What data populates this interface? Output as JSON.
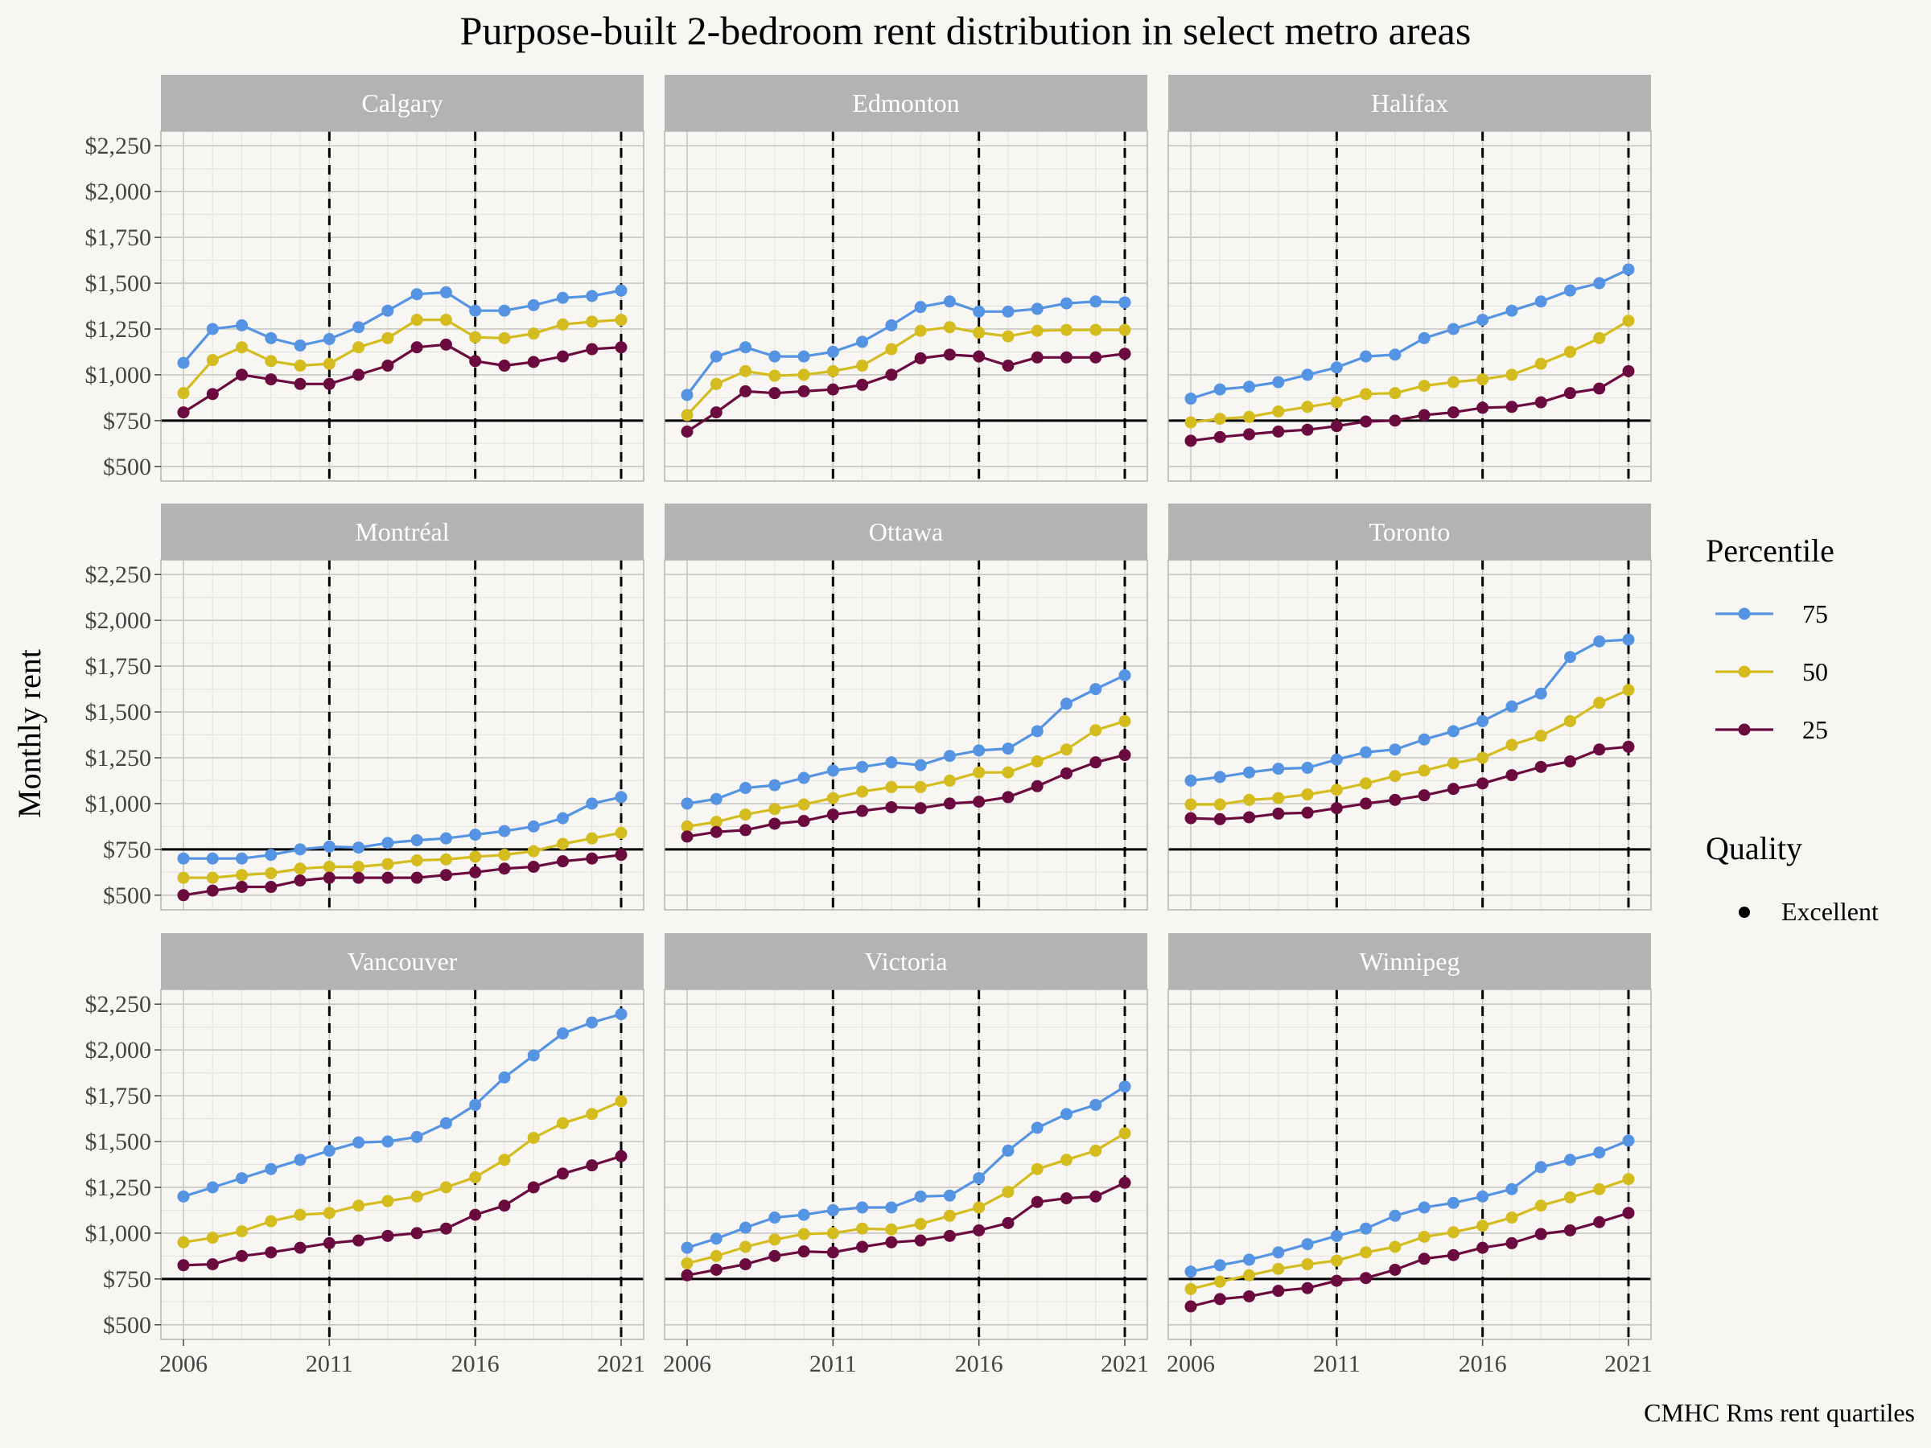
{
  "chart_data": {
    "type": "line",
    "title": "Purpose-built 2-bedroom rent distribution in select metro areas",
    "ylabel": "Monthly rent",
    "caption": "CMHC Rms rent quartiles",
    "x": [
      2006,
      2007,
      2008,
      2009,
      2010,
      2011,
      2012,
      2013,
      2014,
      2015,
      2016,
      2017,
      2018,
      2019,
      2020,
      2021
    ],
    "x_ticks": [
      2006,
      2011,
      2016,
      2021
    ],
    "x_tick_labels": [
      "2006",
      "2011",
      "2016",
      "2021"
    ],
    "ylim": [
      420,
      2330
    ],
    "y_ticks": [
      500,
      750,
      1000,
      1250,
      1500,
      1750,
      2000,
      2250
    ],
    "y_tick_labels": [
      "$500",
      "$750",
      "$1,000",
      "$1,250",
      "$1,500",
      "$1,750",
      "$2,000",
      "$2,250"
    ],
    "reference_hline": 750,
    "reference_vlines": [
      2011,
      2016,
      2021
    ],
    "grid": true,
    "legend": {
      "position": "right",
      "percentile_title": "Percentile",
      "quality_title": "Quality",
      "quality_items": [
        {
          "label": "Excellent",
          "color": "#000000"
        }
      ]
    },
    "series_meta": [
      {
        "name": "75",
        "color": "#5593e3"
      },
      {
        "name": "50",
        "color": "#d4bc1e"
      },
      {
        "name": "25",
        "color": "#6b0a3f"
      }
    ],
    "panels": [
      {
        "name": "Calgary",
        "series": [
          {
            "name": "75",
            "values": [
              1065,
              1250,
              1270,
              1200,
              1160,
              1195,
              1260,
              1350,
              1440,
              1450,
              1350,
              1350,
              1380,
              1420,
              1430,
              1460
            ]
          },
          {
            "name": "50",
            "values": [
              900,
              1080,
              1150,
              1075,
              1050,
              1060,
              1150,
              1200,
              1300,
              1300,
              1205,
              1200,
              1225,
              1275,
              1290,
              1300
            ]
          },
          {
            "name": "25",
            "values": [
              795,
              895,
              1000,
              975,
              950,
              950,
              1000,
              1050,
              1150,
              1165,
              1075,
              1050,
              1070,
              1100,
              1140,
              1150
            ]
          }
        ]
      },
      {
        "name": "Edmonton",
        "series": [
          {
            "name": "75",
            "values": [
              890,
              1100,
              1150,
              1100,
              1100,
              1125,
              1180,
              1270,
              1370,
              1400,
              1345,
              1345,
              1360,
              1390,
              1400,
              1395
            ]
          },
          {
            "name": "50",
            "values": [
              780,
              950,
              1020,
              995,
              1000,
              1020,
              1050,
              1140,
              1240,
              1260,
              1230,
              1210,
              1240,
              1245,
              1245,
              1245
            ]
          },
          {
            "name": "25",
            "values": [
              690,
              795,
              910,
              900,
              910,
              920,
              945,
              1000,
              1090,
              1110,
              1100,
              1050,
              1095,
              1095,
              1095,
              1115
            ]
          }
        ]
      },
      {
        "name": "Halifax",
        "series": [
          {
            "name": "75",
            "values": [
              870,
              920,
              935,
              960,
              1000,
              1040,
              1100,
              1110,
              1200,
              1250,
              1300,
              1350,
              1400,
              1460,
              1500,
              1575
            ]
          },
          {
            "name": "50",
            "values": [
              740,
              760,
              770,
              800,
              825,
              850,
              895,
              900,
              940,
              960,
              975,
              1000,
              1060,
              1125,
              1200,
              1295
            ]
          },
          {
            "name": "25",
            "values": [
              640,
              660,
              675,
              690,
              700,
              720,
              745,
              750,
              780,
              795,
              820,
              825,
              850,
              900,
              925,
              1020
            ]
          }
        ]
      },
      {
        "name": "Montréal",
        "series": [
          {
            "name": "75",
            "values": [
              700,
              700,
              700,
              720,
              750,
              765,
              760,
              785,
              800,
              810,
              830,
              850,
              875,
              920,
              1000,
              1035
            ]
          },
          {
            "name": "50",
            "values": [
              595,
              595,
              610,
              620,
              645,
              655,
              655,
              670,
              690,
              695,
              710,
              720,
              740,
              780,
              810,
              840
            ]
          },
          {
            "name": "25",
            "values": [
              500,
              525,
              545,
              545,
              580,
              595,
              595,
              595,
              595,
              610,
              625,
              645,
              655,
              685,
              700,
              720
            ]
          }
        ]
      },
      {
        "name": "Ottawa",
        "series": [
          {
            "name": "75",
            "values": [
              1000,
              1025,
              1085,
              1100,
              1140,
              1180,
              1200,
              1225,
              1210,
              1260,
              1290,
              1300,
              1395,
              1545,
              1625,
              1700
            ]
          },
          {
            "name": "50",
            "values": [
              875,
              900,
              940,
              970,
              995,
              1030,
              1065,
              1090,
              1090,
              1125,
              1170,
              1170,
              1230,
              1295,
              1400,
              1450
            ]
          },
          {
            "name": "25",
            "values": [
              820,
              845,
              855,
              890,
              905,
              940,
              960,
              980,
              975,
              1000,
              1010,
              1035,
              1095,
              1165,
              1225,
              1265
            ]
          }
        ]
      },
      {
        "name": "Toronto",
        "series": [
          {
            "name": "75",
            "values": [
              1125,
              1145,
              1170,
              1190,
              1195,
              1240,
              1280,
              1295,
              1350,
              1395,
              1450,
              1530,
              1600,
              1800,
              1885,
              1895
            ]
          },
          {
            "name": "50",
            "values": [
              995,
              995,
              1020,
              1030,
              1050,
              1075,
              1110,
              1150,
              1180,
              1220,
              1250,
              1320,
              1370,
              1450,
              1550,
              1620
            ]
          },
          {
            "name": "25",
            "values": [
              920,
              915,
              925,
              945,
              950,
              975,
              1000,
              1020,
              1045,
              1080,
              1110,
              1155,
              1200,
              1230,
              1295,
              1310
            ]
          }
        ]
      },
      {
        "name": "Vancouver",
        "series": [
          {
            "name": "75",
            "values": [
              1200,
              1250,
              1300,
              1350,
              1400,
              1450,
              1495,
              1500,
              1525,
              1600,
              1700,
              1850,
              1970,
              2090,
              2150,
              2195
            ]
          },
          {
            "name": "50",
            "values": [
              950,
              975,
              1010,
              1065,
              1100,
              1110,
              1150,
              1175,
              1200,
              1250,
              1305,
              1400,
              1520,
              1600,
              1650,
              1720
            ]
          },
          {
            "name": "25",
            "values": [
              825,
              830,
              875,
              895,
              920,
              945,
              960,
              985,
              1000,
              1025,
              1100,
              1150,
              1250,
              1325,
              1370,
              1420
            ]
          }
        ]
      },
      {
        "name": "Victoria",
        "series": [
          {
            "name": "75",
            "values": [
              920,
              970,
              1030,
              1085,
              1100,
              1125,
              1140,
              1140,
              1200,
              1205,
              1300,
              1450,
              1575,
              1650,
              1700,
              1800
            ]
          },
          {
            "name": "50",
            "values": [
              835,
              875,
              925,
              965,
              995,
              1000,
              1025,
              1020,
              1050,
              1095,
              1140,
              1225,
              1350,
              1400,
              1450,
              1545
            ]
          },
          {
            "name": "25",
            "values": [
              770,
              800,
              830,
              875,
              900,
              895,
              925,
              950,
              960,
              985,
              1015,
              1055,
              1170,
              1190,
              1200,
              1275
            ]
          }
        ]
      },
      {
        "name": "Winnipeg",
        "series": [
          {
            "name": "75",
            "values": [
              790,
              825,
              855,
              895,
              940,
              985,
              1025,
              1095,
              1140,
              1165,
              1200,
              1240,
              1360,
              1400,
              1440,
              1505
            ]
          },
          {
            "name": "50",
            "values": [
              695,
              735,
              770,
              805,
              830,
              850,
              895,
              925,
              980,
              1005,
              1040,
              1085,
              1150,
              1195,
              1240,
              1295
            ]
          },
          {
            "name": "25",
            "values": [
              600,
              640,
              655,
              685,
              700,
              740,
              755,
              800,
              860,
              880,
              920,
              945,
              995,
              1015,
              1060,
              1110
            ]
          }
        ]
      }
    ]
  }
}
